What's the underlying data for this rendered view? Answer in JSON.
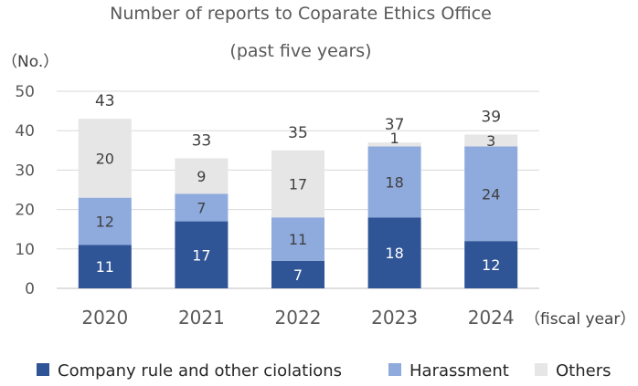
{
  "chart_data": {
    "type": "bar",
    "stacked": true,
    "title": "Number of reports to Coparate Ethics Office",
    "subtitle": "(past five years)",
    "ylabel": "（No.）",
    "xlabel": "（fiscal year）",
    "ylim": [
      0,
      50
    ],
    "yticks": [
      0,
      10,
      20,
      30,
      40,
      50
    ],
    "grid": true,
    "legend_position": "bottom",
    "categories": [
      "2020",
      "2021",
      "2022",
      "2023",
      "2024"
    ],
    "series": [
      {
        "name": "Company rule and other ciolations",
        "color": "#2F5597",
        "label_color": "#ffffff",
        "values": [
          11,
          17,
          7,
          18,
          12
        ]
      },
      {
        "name": "Harassment",
        "color": "#8FAADC",
        "label_color": "#404040",
        "values": [
          12,
          7,
          11,
          18,
          24
        ]
      },
      {
        "name": "Others",
        "color": "#E7E6E6",
        "label_color": "#404040",
        "values": [
          20,
          9,
          17,
          1,
          3
        ]
      }
    ],
    "totals": [
      43,
      33,
      35,
      37,
      39
    ]
  }
}
